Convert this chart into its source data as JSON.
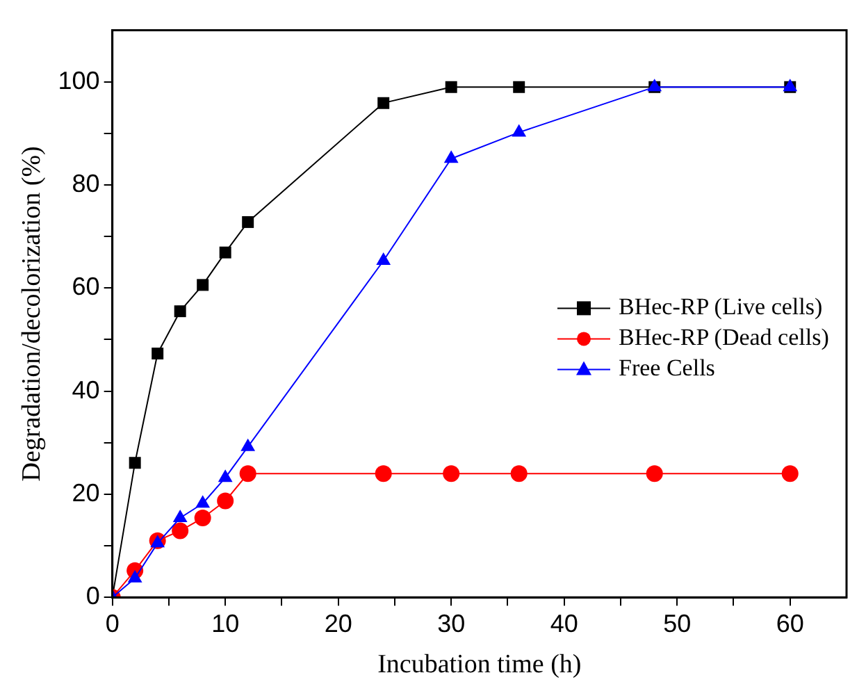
{
  "chart_data": {
    "type": "line",
    "xlabel": "Incubation time (h)",
    "ylabel": "Degradation/decolorization (%)",
    "x": [
      0,
      2,
      4,
      6,
      8,
      10,
      12,
      24,
      30,
      36,
      48,
      60
    ],
    "series": [
      {
        "name": "BHec-RP (Live cells)",
        "color": "#000000",
        "marker": "square",
        "values": [
          0,
          26.1,
          47.3,
          55.5,
          60.6,
          66.9,
          72.8,
          95.9,
          99,
          99,
          99,
          99
        ]
      },
      {
        "name": "BHec-RP (Dead cells)",
        "color": "#ff0000",
        "marker": "circle",
        "values": [
          0,
          5.2,
          11,
          12.9,
          15.4,
          18.7,
          24,
          24,
          24,
          24,
          24,
          24
        ]
      },
      {
        "name": "Free Cells",
        "color": "#0000ff",
        "marker": "triangle",
        "values": [
          0,
          3.7,
          10.5,
          15.4,
          18.2,
          23.2,
          29.2,
          65.3,
          85.1,
          90.2,
          99,
          99
        ]
      }
    ],
    "xlim": [
      0,
      65
    ],
    "ylim": [
      0,
      110
    ],
    "xticks": [
      0,
      {
        "value": 5,
        "label": null
      },
      10,
      {
        "value": 15,
        "label": null
      },
      20,
      {
        "value": 25,
        "label": null
      },
      30,
      {
        "value": 35,
        "label": null
      },
      40,
      {
        "value": 45,
        "label": null
      },
      50,
      {
        "value": 55,
        "label": null
      },
      60
    ],
    "yticks": [
      0,
      {
        "value": 10,
        "label": null
      },
      20,
      {
        "value": 30,
        "label": null
      },
      40,
      {
        "value": 50,
        "label": null
      },
      60,
      {
        "value": 70,
        "label": null
      },
      80,
      {
        "value": 90,
        "label": null
      },
      100
    ],
    "grid": false,
    "legend": "right",
    "line_style": "solid"
  }
}
